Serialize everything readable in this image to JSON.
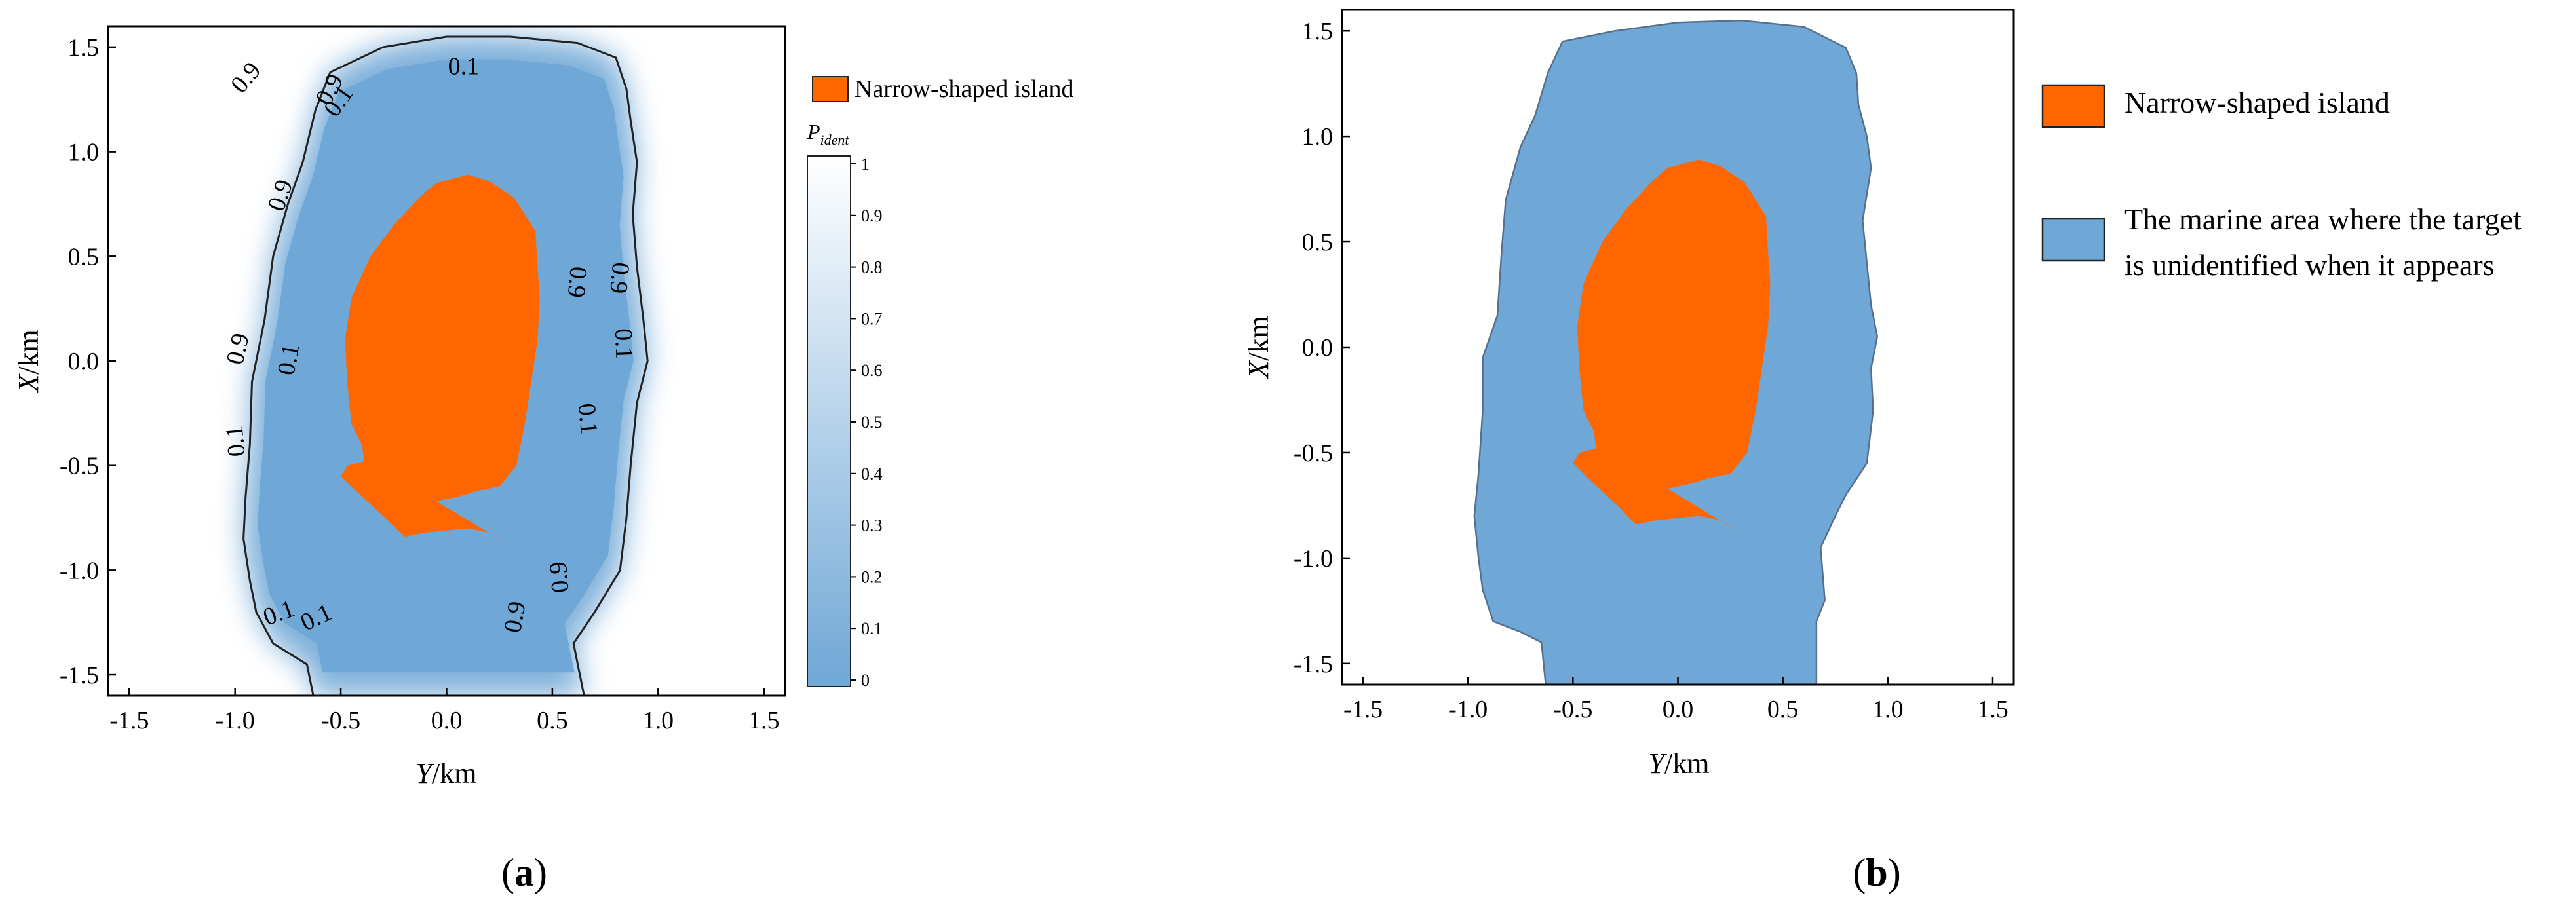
{
  "figure": {
    "panel_a_caption": "a",
    "panel_b_caption": "b"
  },
  "colors": {
    "island": "#ff6600",
    "marine": "#6fa7d6",
    "colorbar_top": "#ffffff",
    "colorbar_bottom": "#6fa7d6",
    "axis": "#000000"
  },
  "chart_data": [
    {
      "type": "heatmap",
      "panel": "a",
      "xlabel_var": "Y",
      "xlabel_unit": "/km",
      "ylabel_var": "X",
      "ylabel_unit": "/km",
      "xlim": [
        -1.6,
        1.6
      ],
      "ylim": [
        -1.6,
        1.6
      ],
      "xticks": [
        -1.5,
        -1.0,
        -0.5,
        0.0,
        0.5,
        1.0,
        1.5
      ],
      "xtick_labels": [
        "-1.5",
        "-1.0",
        "-0.5",
        "0.0",
        "0.5",
        "1.0",
        "1.5"
      ],
      "yticks": [
        1.5,
        1.0,
        0.5,
        0.0,
        -0.5,
        -1.0,
        -1.5
      ],
      "ytick_labels": [
        "1.5",
        "1.0",
        "0.5",
        "0.0",
        "-0.5",
        "-1.0",
        "-1.5"
      ],
      "legend": [
        {
          "label": "Narrow-shaped island",
          "color": "#ff6600"
        }
      ],
      "colorbar": {
        "title_var": "P",
        "title_sub": "ident",
        "range": [
          0,
          1
        ],
        "ticks": [
          1,
          0.9,
          0.8,
          0.7,
          0.6,
          0.5,
          0.4,
          0.3,
          0.2,
          0.1,
          0
        ],
        "tick_labels": [
          "1",
          "0.9",
          "0.8",
          "0.7",
          "0.6",
          "0.5",
          "0.4",
          "0.3",
          "0.2",
          "0.1",
          "0"
        ]
      },
      "contour_levels": [
        0.1,
        0.9
      ],
      "contour_labels": [
        "0.9",
        "0.1",
        "0.1",
        "0.9",
        "0.9",
        "0.1",
        "0.1",
        "0.9",
        "0.9",
        "0.1",
        "0.1",
        "0.9",
        "0.9",
        "0.1",
        "0.1",
        "0.9"
      ],
      "island_outline": [
        [
          0.33,
          -0.9
        ],
        [
          0.2,
          -0.82
        ],
        [
          0.1,
          -0.8
        ],
        [
          -0.1,
          -0.82
        ],
        [
          -0.2,
          -0.84
        ],
        [
          -0.28,
          -0.76
        ],
        [
          -0.45,
          -0.6
        ],
        [
          -0.5,
          -0.55
        ],
        [
          -0.47,
          -0.5
        ],
        [
          -0.39,
          -0.48
        ],
        [
          -0.4,
          -0.4
        ],
        [
          -0.45,
          -0.3
        ],
        [
          -0.47,
          -0.1
        ],
        [
          -0.48,
          0.1
        ],
        [
          -0.45,
          0.3
        ],
        [
          -0.36,
          0.5
        ],
        [
          -0.25,
          0.65
        ],
        [
          -0.12,
          0.79
        ],
        [
          -0.05,
          0.85
        ],
        [
          0.1,
          0.89
        ],
        [
          0.2,
          0.86
        ],
        [
          0.32,
          0.78
        ],
        [
          0.42,
          0.62
        ],
        [
          0.43,
          0.45
        ],
        [
          0.44,
          0.3
        ],
        [
          0.43,
          0.1
        ],
        [
          0.4,
          -0.1
        ],
        [
          0.37,
          -0.3
        ],
        [
          0.33,
          -0.5
        ],
        [
          0.25,
          -0.6
        ],
        [
          0.15,
          -0.62
        ],
        [
          0.05,
          -0.65
        ],
        [
          -0.05,
          -0.67
        ]
      ],
      "marine_outline": [
        [
          0.65,
          -1.6
        ],
        [
          0.6,
          -1.35
        ],
        [
          0.7,
          -1.2
        ],
        [
          0.82,
          -1.0
        ],
        [
          0.85,
          -0.75
        ],
        [
          0.87,
          -0.5
        ],
        [
          0.9,
          -0.2
        ],
        [
          0.95,
          0.0
        ],
        [
          0.93,
          0.2
        ],
        [
          0.9,
          0.45
        ],
        [
          0.88,
          0.7
        ],
        [
          0.9,
          0.95
        ],
        [
          0.87,
          1.15
        ],
        [
          0.85,
          1.3
        ],
        [
          0.8,
          1.45
        ],
        [
          0.62,
          1.52
        ],
        [
          0.3,
          1.55
        ],
        [
          0.0,
          1.55
        ],
        [
          -0.3,
          1.5
        ],
        [
          -0.55,
          1.38
        ],
        [
          -0.62,
          1.2
        ],
        [
          -0.68,
          0.95
        ],
        [
          -0.75,
          0.75
        ],
        [
          -0.82,
          0.5
        ],
        [
          -0.86,
          0.2
        ],
        [
          -0.92,
          -0.1
        ],
        [
          -0.93,
          -0.4
        ],
        [
          -0.95,
          -0.65
        ],
        [
          -0.96,
          -0.85
        ],
        [
          -0.93,
          -1.05
        ],
        [
          -0.9,
          -1.2
        ],
        [
          -0.82,
          -1.35
        ],
        [
          -0.66,
          -1.45
        ],
        [
          -0.63,
          -1.6
        ]
      ]
    },
    {
      "type": "area",
      "panel": "b",
      "xlabel_var": "Y",
      "xlabel_unit": "/km",
      "ylabel_var": "X",
      "ylabel_unit": "/km",
      "xlim": [
        -1.6,
        1.6
      ],
      "ylim": [
        -1.6,
        1.6
      ],
      "xticks": [
        -1.5,
        -1.0,
        -0.5,
        0.0,
        0.5,
        1.0,
        1.5
      ],
      "xtick_labels": [
        "-1.5",
        "-1.0",
        "-0.5",
        "0.0",
        "0.5",
        "1.0",
        "1.5"
      ],
      "yticks": [
        1.5,
        1.0,
        0.5,
        0.0,
        -0.5,
        -1.0,
        -1.5
      ],
      "ytick_labels": [
        "1.5",
        "1.0",
        "0.5",
        "0.0",
        "-0.5",
        "-1.0",
        "-1.5"
      ],
      "legend": [
        {
          "label": "Narrow-shaped island",
          "color": "#ff6600"
        },
        {
          "label_line1": "The marine area where the target",
          "label_line2": "is unidentified when it appears",
          "color": "#6fa7d6"
        }
      ],
      "island_outline": [
        [
          0.33,
          -0.9
        ],
        [
          0.2,
          -0.82
        ],
        [
          0.1,
          -0.8
        ],
        [
          -0.1,
          -0.82
        ],
        [
          -0.2,
          -0.84
        ],
        [
          -0.28,
          -0.76
        ],
        [
          -0.45,
          -0.6
        ],
        [
          -0.5,
          -0.55
        ],
        [
          -0.47,
          -0.5
        ],
        [
          -0.39,
          -0.48
        ],
        [
          -0.4,
          -0.4
        ],
        [
          -0.45,
          -0.3
        ],
        [
          -0.47,
          -0.1
        ],
        [
          -0.48,
          0.1
        ],
        [
          -0.45,
          0.3
        ],
        [
          -0.36,
          0.5
        ],
        [
          -0.25,
          0.65
        ],
        [
          -0.12,
          0.79
        ],
        [
          -0.05,
          0.85
        ],
        [
          0.1,
          0.89
        ],
        [
          0.2,
          0.86
        ],
        [
          0.32,
          0.78
        ],
        [
          0.42,
          0.62
        ],
        [
          0.43,
          0.45
        ],
        [
          0.44,
          0.3
        ],
        [
          0.43,
          0.1
        ],
        [
          0.4,
          -0.1
        ],
        [
          0.37,
          -0.3
        ],
        [
          0.33,
          -0.5
        ],
        [
          0.25,
          -0.6
        ],
        [
          0.15,
          -0.62
        ],
        [
          0.05,
          -0.65
        ],
        [
          -0.05,
          -0.67
        ]
      ],
      "marine_outline": [
        [
          0.66,
          -1.6
        ],
        [
          0.66,
          -1.3
        ],
        [
          0.7,
          -1.2
        ],
        [
          0.68,
          -0.95
        ],
        [
          0.75,
          -0.8
        ],
        [
          0.8,
          -0.7
        ],
        [
          0.9,
          -0.55
        ],
        [
          0.93,
          -0.3
        ],
        [
          0.92,
          -0.1
        ],
        [
          0.95,
          0.05
        ],
        [
          0.92,
          0.2
        ],
        [
          0.9,
          0.4
        ],
        [
          0.88,
          0.6
        ],
        [
          0.92,
          0.85
        ],
        [
          0.9,
          1.0
        ],
        [
          0.86,
          1.15
        ],
        [
          0.85,
          1.3
        ],
        [
          0.8,
          1.42
        ],
        [
          0.6,
          1.52
        ],
        [
          0.3,
          1.55
        ],
        [
          0.0,
          1.54
        ],
        [
          -0.3,
          1.5
        ],
        [
          -0.55,
          1.45
        ],
        [
          -0.62,
          1.3
        ],
        [
          -0.68,
          1.1
        ],
        [
          -0.75,
          0.95
        ],
        [
          -0.82,
          0.7
        ],
        [
          -0.84,
          0.45
        ],
        [
          -0.86,
          0.15
        ],
        [
          -0.93,
          -0.05
        ],
        [
          -0.93,
          -0.3
        ],
        [
          -0.95,
          -0.6
        ],
        [
          -0.97,
          -0.8
        ],
        [
          -0.95,
          -1.0
        ],
        [
          -0.93,
          -1.15
        ],
        [
          -0.88,
          -1.3
        ],
        [
          -0.75,
          -1.35
        ],
        [
          -0.65,
          -1.4
        ],
        [
          -0.63,
          -1.6
        ]
      ]
    }
  ]
}
